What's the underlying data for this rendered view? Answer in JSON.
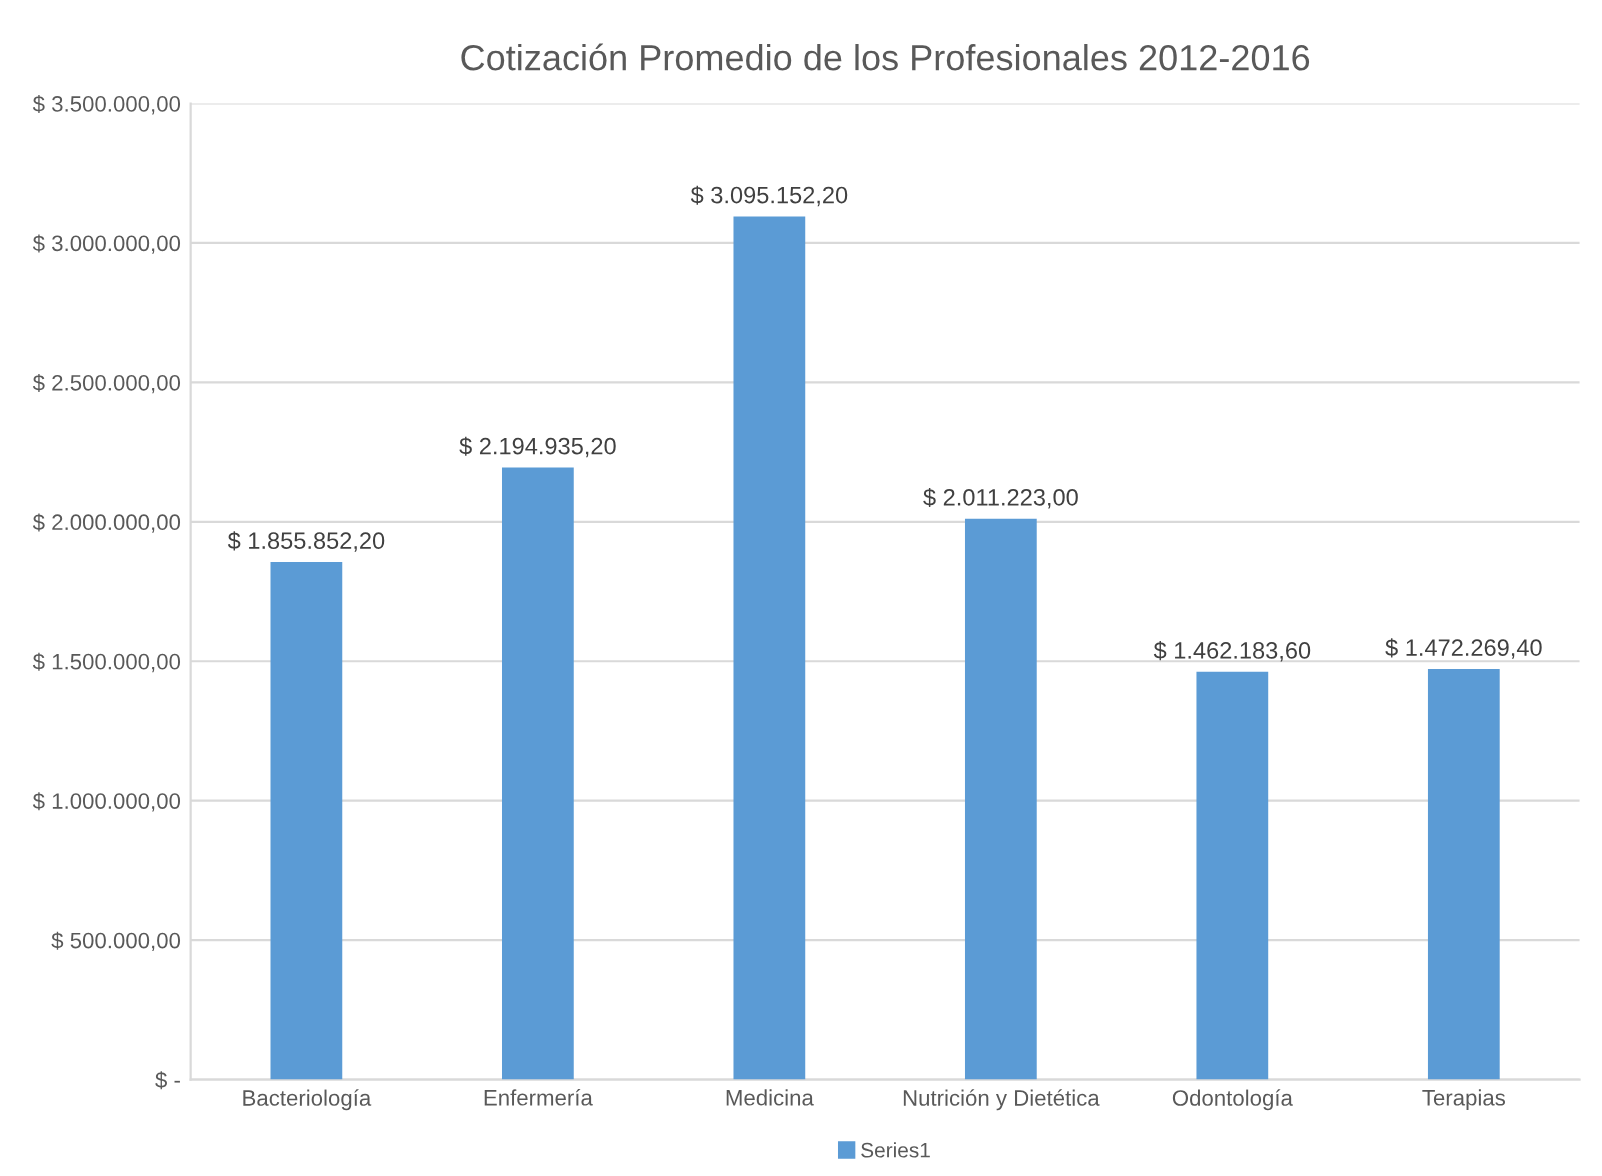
{
  "chart_data": {
    "type": "bar",
    "title": "Cotización Promedio de los Profesionales 2012-2016",
    "categories": [
      "Bacteriología",
      "Enfermería",
      "Medicina",
      "Nutrición y Dietética",
      "Odontología",
      "Terapias"
    ],
    "series": [
      {
        "name": "Series1",
        "color": "#5b9bd5",
        "values": [
          1855852.2,
          2194935.2,
          3095152.2,
          2011223,
          1462183.6,
          1472269.4
        ],
        "value_labels": [
          "$ 1.855.852,20",
          "$ 2.194.935,20",
          "$ 3.095.152,20",
          "$ 2.011.223,00",
          "$ 1.462.183,60",
          "$ 1.472.269,40"
        ]
      }
    ],
    "ylim": [
      0,
      3500000
    ],
    "yticks": [
      {
        "value": 0,
        "label": "$ -"
      },
      {
        "value": 500000,
        "label": "$ 500.000,00"
      },
      {
        "value": 1000000,
        "label": "$ 1.000.000,00"
      },
      {
        "value": 1500000,
        "label": "$ 1.500.000,00"
      },
      {
        "value": 2000000,
        "label": "$ 2.000.000,00"
      },
      {
        "value": 2500000,
        "label": "$ 2.500.000,00"
      },
      {
        "value": 3000000,
        "label": "$ 3.000.000,00"
      },
      {
        "value": 3500000,
        "label": "$ 3.500.000,00"
      }
    ],
    "grid": "y",
    "legend": "bottom"
  }
}
